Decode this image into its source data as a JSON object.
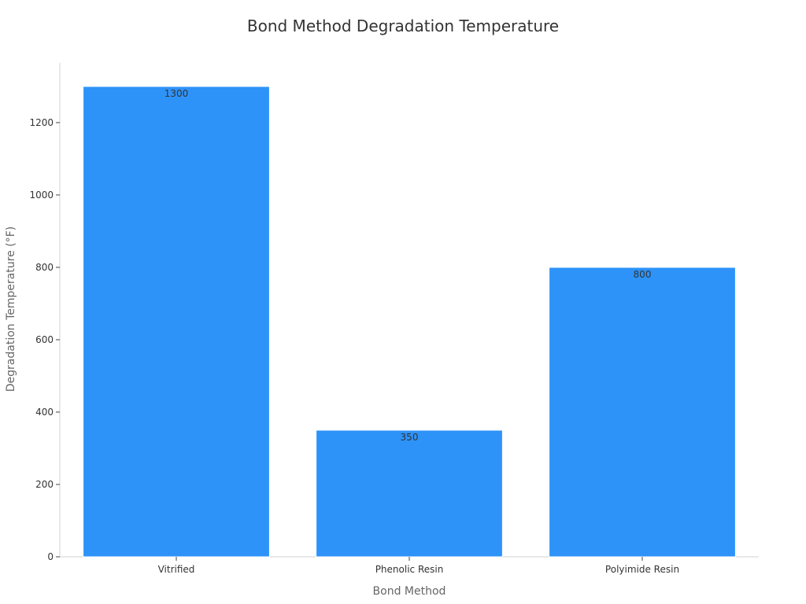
{
  "chart_data": {
    "type": "bar",
    "title": "Bond Method Degradation Temperature",
    "xlabel": "Bond Method",
    "ylabel": "Degradation Temperature (°F)",
    "categories": [
      "Vitrified",
      "Phenolic Resin",
      "Polyimide Resin"
    ],
    "values": [
      1300,
      350,
      800
    ],
    "data_labels": [
      "1300",
      "350",
      "800"
    ],
    "ylim": [
      0,
      1365
    ],
    "yticks": [
      0,
      200,
      400,
      600,
      800,
      1000,
      1200
    ],
    "grid": false,
    "legend": "none",
    "colors": {
      "bar": "#2e93f9",
      "axis": "#d0d0d0",
      "text": "#333333",
      "axis_title": "#666666"
    }
  }
}
